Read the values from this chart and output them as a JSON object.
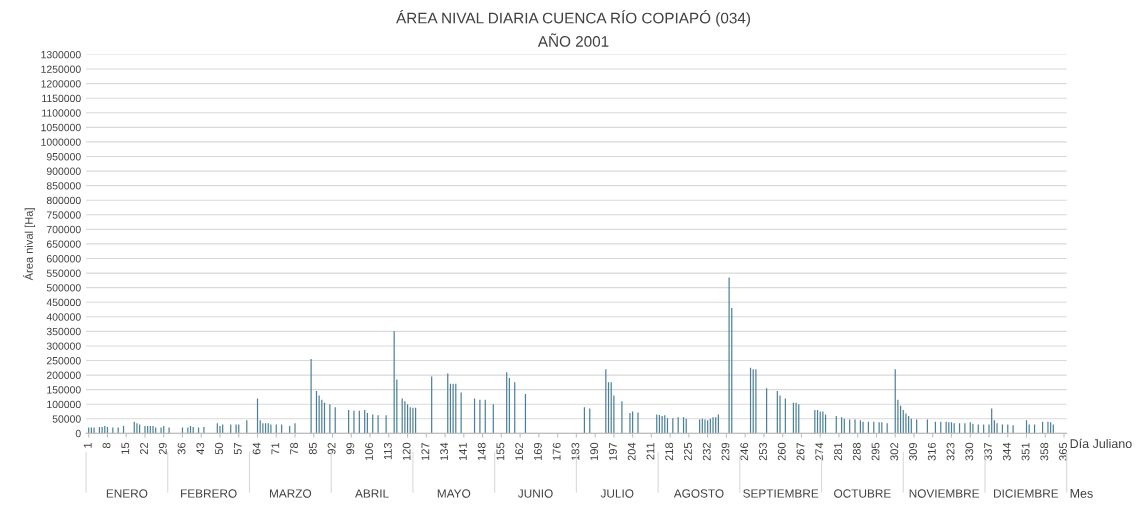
{
  "chart_data": {
    "type": "bar",
    "title": "ÁREA NIVAL DIARIA CUENCA RÍO COPIAPÓ (034)",
    "subtitle": "AÑO 2001",
    "xlabel": "Día Juliano",
    "ylabel": "Área nival [Ha]",
    "x": [
      1,
      2,
      3,
      5,
      6,
      7,
      8,
      10,
      12,
      14,
      18,
      19,
      20,
      22,
      23,
      24,
      25,
      26,
      28,
      29,
      31,
      36,
      38,
      39,
      40,
      42,
      44,
      49,
      50,
      51,
      54,
      56,
      57,
      60,
      64,
      65,
      66,
      67,
      68,
      69,
      71,
      73,
      76,
      78,
      84,
      86,
      87,
      88,
      89,
      91,
      93,
      98,
      100,
      102,
      104,
      105,
      107,
      109,
      112,
      115,
      116,
      118,
      119,
      120,
      121,
      122,
      123,
      129,
      135,
      136,
      137,
      138,
      140,
      145,
      147,
      149,
      152,
      157,
      158,
      160,
      164,
      186,
      188,
      194,
      195,
      196,
      197,
      200,
      203,
      204,
      206,
      213,
      214,
      215,
      216,
      217,
      219,
      221,
      223,
      224,
      229,
      230,
      231,
      232,
      233,
      234,
      235,
      236,
      240,
      241,
      248,
      249,
      250,
      254,
      258,
      259,
      261,
      264,
      265,
      266,
      272,
      273,
      274,
      275,
      276,
      280,
      282,
      283,
      285,
      287,
      289,
      290,
      292,
      294,
      296,
      297,
      299,
      302,
      303,
      304,
      305,
      306,
      307,
      308,
      310,
      314,
      317,
      319,
      321,
      322,
      323,
      324,
      326,
      328,
      330,
      331,
      333,
      335,
      337,
      338,
      339,
      340,
      342,
      344,
      346,
      351,
      352,
      354,
      357,
      359,
      360,
      361
    ],
    "values": [
      20000,
      20000,
      20000,
      22000,
      22000,
      25000,
      22000,
      20000,
      20000,
      25000,
      40000,
      35000,
      30000,
      25000,
      25000,
      25000,
      25000,
      20000,
      20000,
      25000,
      20000,
      20000,
      20000,
      25000,
      22000,
      20000,
      22000,
      35000,
      25000,
      30000,
      30000,
      30000,
      30000,
      45000,
      120000,
      45000,
      35000,
      35000,
      35000,
      30000,
      30000,
      30000,
      25000,
      35000,
      255000,
      145000,
      130000,
      115000,
      105000,
      100000,
      90000,
      80000,
      78000,
      78000,
      80000,
      70000,
      65000,
      62000,
      62000,
      350000,
      185000,
      120000,
      110000,
      100000,
      90000,
      88000,
      88000,
      195000,
      205000,
      170000,
      170000,
      170000,
      140000,
      120000,
      115000,
      115000,
      100000,
      210000,
      190000,
      175000,
      135000,
      90000,
      85000,
      220000,
      175000,
      175000,
      130000,
      110000,
      70000,
      75000,
      72000,
      65000,
      63000,
      60000,
      62000,
      52000,
      52000,
      55000,
      55000,
      50000,
      48000,
      50000,
      48000,
      45000,
      50000,
      55000,
      55000,
      65000,
      535000,
      430000,
      225000,
      220000,
      220000,
      155000,
      145000,
      130000,
      120000,
      105000,
      105000,
      100000,
      80000,
      80000,
      75000,
      75000,
      65000,
      60000,
      55000,
      50000,
      48000,
      48000,
      45000,
      40000,
      40000,
      40000,
      38000,
      38000,
      35000,
      220000,
      115000,
      95000,
      80000,
      68000,
      60000,
      50000,
      48000,
      48000,
      40000,
      40000,
      40000,
      38000,
      38000,
      35000,
      35000,
      35000,
      38000,
      33000,
      30000,
      30000,
      30000,
      85000,
      45000,
      35000,
      30000,
      30000,
      28000,
      45000,
      30000,
      30000,
      40000,
      40000,
      38000,
      30000
    ],
    "color": "#4a7f96",
    "xlim": [
      0,
      366
    ],
    "xticks": [
      1,
      8,
      15,
      22,
      29,
      36,
      43,
      50,
      57,
      64,
      71,
      78,
      85,
      92,
      99,
      106,
      113,
      120,
      127,
      134,
      141,
      148,
      155,
      162,
      169,
      176,
      183,
      190,
      197,
      204,
      211,
      218,
      225,
      232,
      239,
      246,
      253,
      260,
      267,
      274,
      281,
      288,
      295,
      302,
      309,
      316,
      323,
      330,
      337,
      344,
      351,
      358,
      365
    ],
    "annotations": [
      "ENERO",
      "FEBRERO",
      "MARZO",
      "ABRIL",
      "MAYO",
      "JUNIO",
      "JULIO",
      "AGOSTO",
      "SEPTIEMBRE",
      "OCTUBRE",
      "NOVIEMBRE",
      "DICIEMBRE",
      "Mes"
    ],
    "ylim": [
      0,
      1300000
    ],
    "yticks": [
      0,
      50000,
      100000,
      150000,
      200000,
      250000,
      300000,
      350000,
      400000,
      450000,
      500000,
      550000,
      600000,
      650000,
      700000,
      750000,
      800000,
      850000,
      900000,
      950000,
      1000000,
      1050000,
      1100000,
      1150000,
      1200000,
      1250000,
      1300000
    ],
    "grid": "y",
    "legend": false
  }
}
